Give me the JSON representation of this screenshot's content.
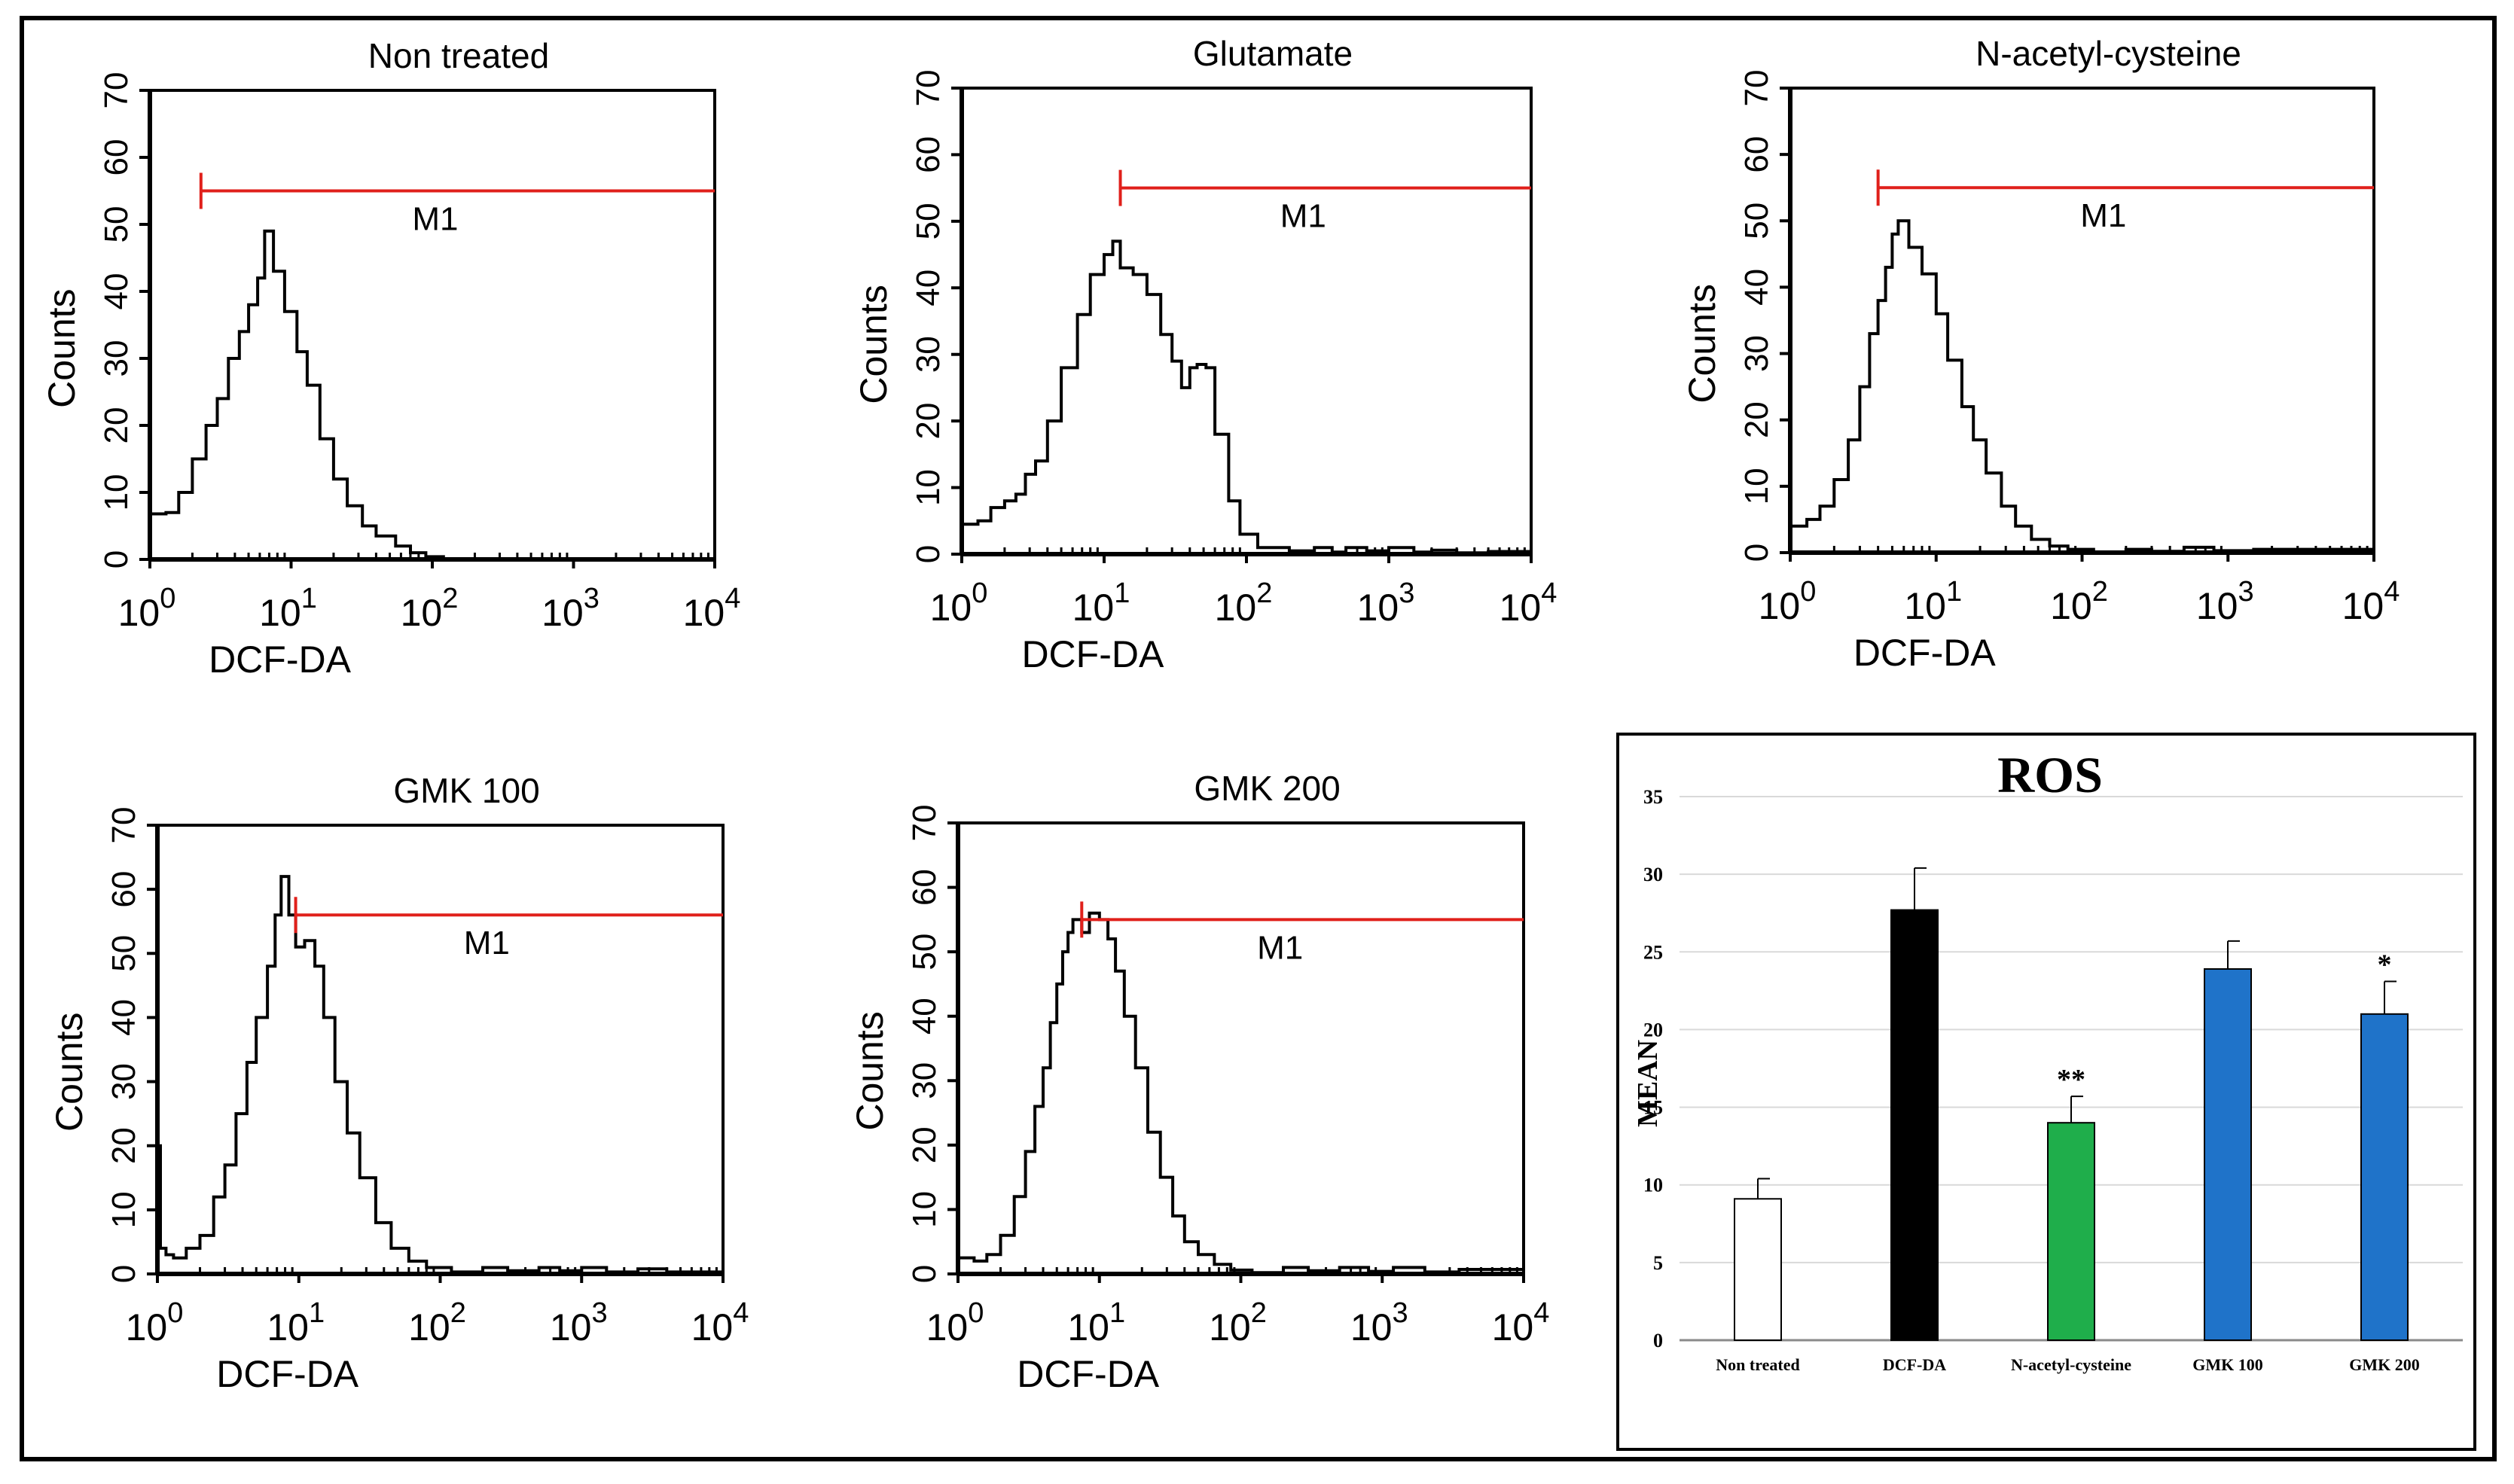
{
  "chart_data": [
    {
      "type": "histogram",
      "title": "Non treated",
      "xlabel": "DCF-DA",
      "ylabel": "Counts",
      "x_scale": "log",
      "xlim": [
        1,
        10000
      ],
      "ylim": [
        0,
        70
      ],
      "xticks": [
        {
          "base": "10",
          "exp": "0"
        },
        {
          "base": "10",
          "exp": "1"
        },
        {
          "base": "10",
          "exp": "2"
        },
        {
          "base": "10",
          "exp": "3"
        },
        {
          "base": "10",
          "exp": "4"
        }
      ],
      "yticks": [
        "0",
        "10",
        "20",
        "30",
        "40",
        "50",
        "60",
        "70"
      ],
      "marker": {
        "label": "M1",
        "start": 2.3,
        "end": 10000,
        "level": 55,
        "color": "#e0201b"
      },
      "curve": [
        [
          1,
          6.8
        ],
        [
          1.3,
          7
        ],
        [
          1.6,
          10
        ],
        [
          2,
          15
        ],
        [
          2.5,
          20
        ],
        [
          3,
          24
        ],
        [
          3.6,
          30
        ],
        [
          4.3,
          34
        ],
        [
          5,
          38
        ],
        [
          5.8,
          42
        ],
        [
          6.5,
          49
        ],
        [
          7.5,
          43
        ],
        [
          9,
          37
        ],
        [
          11,
          31
        ],
        [
          13,
          26
        ],
        [
          16,
          18
        ],
        [
          20,
          12
        ],
        [
          25,
          8
        ],
        [
          32,
          5
        ],
        [
          40,
          3.5
        ],
        [
          55,
          2
        ],
        [
          70,
          1
        ],
        [
          90,
          0.4
        ],
        [
          120,
          0.1
        ],
        [
          200,
          0
        ],
        [
          10000,
          0
        ]
      ]
    },
    {
      "type": "histogram",
      "title": "Glutamate",
      "xlabel": "DCF-DA",
      "ylabel": "Counts",
      "x_scale": "log",
      "xlim": [
        1,
        10000
      ],
      "ylim": [
        0,
        70
      ],
      "xticks": [
        {
          "base": "10",
          "exp": "0"
        },
        {
          "base": "10",
          "exp": "1"
        },
        {
          "base": "10",
          "exp": "2"
        },
        {
          "base": "10",
          "exp": "3"
        },
        {
          "base": "10",
          "exp": "4"
        }
      ],
      "yticks": [
        "0",
        "10",
        "20",
        "30",
        "40",
        "50",
        "60",
        "70"
      ],
      "marker": {
        "label": "M1",
        "start": 13,
        "end": 10000,
        "level": 55,
        "color": "#e0201b"
      },
      "curve": [
        [
          1,
          4.5
        ],
        [
          1.3,
          5
        ],
        [
          1.6,
          7
        ],
        [
          2,
          8
        ],
        [
          2.4,
          9
        ],
        [
          2.8,
          12
        ],
        [
          3.3,
          14
        ],
        [
          4,
          20
        ],
        [
          5,
          28
        ],
        [
          6.5,
          36
        ],
        [
          8,
          42
        ],
        [
          10,
          45
        ],
        [
          11.5,
          47
        ],
        [
          13,
          43
        ],
        [
          16,
          42
        ],
        [
          20,
          39
        ],
        [
          25,
          33
        ],
        [
          30,
          29
        ],
        [
          35,
          25
        ],
        [
          40,
          28
        ],
        [
          45,
          28.5
        ],
        [
          52,
          28
        ],
        [
          60,
          18
        ],
        [
          75,
          8
        ],
        [
          90,
          3
        ],
        [
          120,
          1
        ],
        [
          200,
          0.5
        ],
        [
          300,
          1
        ],
        [
          400,
          0.3
        ],
        [
          500,
          1
        ],
        [
          700,
          0.5
        ],
        [
          1000,
          1
        ],
        [
          1500,
          0.3
        ],
        [
          2000,
          0.6
        ],
        [
          3000,
          0.2
        ],
        [
          5000,
          0.4
        ],
        [
          10000,
          0.2
        ]
      ]
    },
    {
      "type": "histogram",
      "title": "N-acetyl-cysteine",
      "xlabel": "DCF-DA",
      "ylabel": "Counts",
      "x_scale": "log",
      "xlim": [
        1,
        10000
      ],
      "ylim": [
        0,
        70
      ],
      "xticks": [
        {
          "base": "10",
          "exp": "0"
        },
        {
          "base": "10",
          "exp": "1"
        },
        {
          "base": "10",
          "exp": "2"
        },
        {
          "base": "10",
          "exp": "3"
        },
        {
          "base": "10",
          "exp": "4"
        }
      ],
      "yticks": [
        "0",
        "10",
        "20",
        "30",
        "40",
        "50",
        "60",
        "70"
      ],
      "marker": {
        "label": "M1",
        "start": 4,
        "end": 10000,
        "level": 55,
        "color": "#e0201b"
      },
      "curve": [
        [
          1,
          4
        ],
        [
          1.3,
          5
        ],
        [
          1.6,
          7
        ],
        [
          2,
          11
        ],
        [
          2.5,
          17
        ],
        [
          3,
          25
        ],
        [
          3.5,
          33
        ],
        [
          4,
          38
        ],
        [
          4.5,
          43
        ],
        [
          5,
          48
        ],
        [
          5.5,
          50
        ],
        [
          6.5,
          46
        ],
        [
          8,
          42
        ],
        [
          10,
          36
        ],
        [
          12,
          29
        ],
        [
          15,
          22
        ],
        [
          18,
          17
        ],
        [
          22,
          12
        ],
        [
          28,
          7
        ],
        [
          35,
          4
        ],
        [
          45,
          2
        ],
        [
          60,
          1
        ],
        [
          80,
          0.5
        ],
        [
          120,
          0.1
        ],
        [
          200,
          0.5
        ],
        [
          300,
          0.2
        ],
        [
          500,
          0.8
        ],
        [
          800,
          0.3
        ],
        [
          1500,
          0.5
        ],
        [
          10000,
          0
        ]
      ]
    },
    {
      "type": "histogram",
      "title": "GMK 100",
      "xlabel": "DCF-DA",
      "ylabel": "Counts",
      "x_scale": "log",
      "xlim": [
        1,
        10000
      ],
      "ylim": [
        0,
        70
      ],
      "xticks": [
        {
          "base": "10",
          "exp": "0"
        },
        {
          "base": "10",
          "exp": "1"
        },
        {
          "base": "10",
          "exp": "2"
        },
        {
          "base": "10",
          "exp": "3"
        },
        {
          "base": "10",
          "exp": "4"
        }
      ],
      "yticks": [
        "0",
        "10",
        "20",
        "30",
        "40",
        "50",
        "60",
        "70"
      ],
      "marker": {
        "label": "M1",
        "start": 9.5,
        "end": 10000,
        "level": 56,
        "color": "#e0201b"
      },
      "curve": [
        [
          1,
          20
        ],
        [
          1.05,
          4
        ],
        [
          1.15,
          3
        ],
        [
          1.3,
          2.5
        ],
        [
          1.6,
          4
        ],
        [
          2,
          6
        ],
        [
          2.5,
          12
        ],
        [
          3,
          17
        ],
        [
          3.6,
          25
        ],
        [
          4.3,
          33
        ],
        [
          5,
          40
        ],
        [
          6,
          48
        ],
        [
          6.8,
          56
        ],
        [
          7.5,
          62
        ],
        [
          8.5,
          56
        ],
        [
          9.5,
          51
        ],
        [
          11,
          52
        ],
        [
          13,
          48
        ],
        [
          15,
          40
        ],
        [
          18,
          30
        ],
        [
          22,
          22
        ],
        [
          27,
          15
        ],
        [
          35,
          8
        ],
        [
          45,
          4
        ],
        [
          60,
          2
        ],
        [
          80,
          1
        ],
        [
          120,
          0.3
        ],
        [
          200,
          1
        ],
        [
          300,
          0.5
        ],
        [
          500,
          1
        ],
        [
          700,
          0.5
        ],
        [
          1000,
          1
        ],
        [
          1500,
          0.3
        ],
        [
          2500,
          0.8
        ],
        [
          4000,
          0.3
        ],
        [
          10000,
          0.2
        ]
      ]
    },
    {
      "type": "histogram",
      "title": "GMK 200",
      "xlabel": "DCF-DA",
      "ylabel": "Counts",
      "x_scale": "log",
      "xlim": [
        1,
        10000
      ],
      "ylim": [
        0,
        70
      ],
      "xticks": [
        {
          "base": "10",
          "exp": "0"
        },
        {
          "base": "10",
          "exp": "1"
        },
        {
          "base": "10",
          "exp": "2"
        },
        {
          "base": "10",
          "exp": "3"
        },
        {
          "base": "10",
          "exp": "4"
        }
      ],
      "yticks": [
        "0",
        "10",
        "20",
        "30",
        "40",
        "50",
        "60",
        "70"
      ],
      "marker": {
        "label": "M1",
        "start": 7.5,
        "end": 10000,
        "level": 55,
        "color": "#e0201b"
      },
      "curve": [
        [
          1,
          2.5
        ],
        [
          1.3,
          2
        ],
        [
          1.6,
          3
        ],
        [
          2,
          6
        ],
        [
          2.5,
          12
        ],
        [
          3,
          19
        ],
        [
          3.5,
          26
        ],
        [
          4,
          32
        ],
        [
          4.5,
          39
        ],
        [
          5,
          45
        ],
        [
          5.5,
          50
        ],
        [
          6,
          53
        ],
        [
          6.5,
          55
        ],
        [
          7.5,
          53
        ],
        [
          8.5,
          56
        ],
        [
          10,
          55
        ],
        [
          11.5,
          52
        ],
        [
          13,
          47
        ],
        [
          15,
          40
        ],
        [
          18,
          32
        ],
        [
          22,
          22
        ],
        [
          27,
          15
        ],
        [
          33,
          9
        ],
        [
          40,
          5
        ],
        [
          50,
          3
        ],
        [
          65,
          1.5
        ],
        [
          85,
          0.6
        ],
        [
          120,
          0.2
        ],
        [
          200,
          1
        ],
        [
          300,
          0.5
        ],
        [
          500,
          1
        ],
        [
          800,
          0.4
        ],
        [
          1200,
          1
        ],
        [
          2000,
          0.3
        ],
        [
          3500,
          0.7
        ],
        [
          10000,
          0.2
        ]
      ]
    },
    {
      "type": "bar",
      "title": "ROS",
      "xlabel": "",
      "ylabel": "MEAN",
      "ylim": [
        0,
        35
      ],
      "yticks": [
        "0",
        "5",
        "10",
        "15",
        "20",
        "25",
        "30",
        "35"
      ],
      "grid": true,
      "categories": [
        "Non treated",
        "DCF-DA",
        "N-acetyl-cysteine",
        "GMK 100",
        "GMK 200"
      ],
      "values": [
        9.1,
        27.7,
        14,
        23.9,
        21
      ],
      "errors": [
        1.3,
        2.7,
        1.7,
        1.8,
        2.1
      ],
      "colors": [
        "#ffffff",
        "#000000",
        "#1fae4b",
        "#1f73c9",
        "#1f73c9"
      ],
      "significance": [
        "",
        "",
        "**",
        "",
        "*"
      ]
    }
  ]
}
